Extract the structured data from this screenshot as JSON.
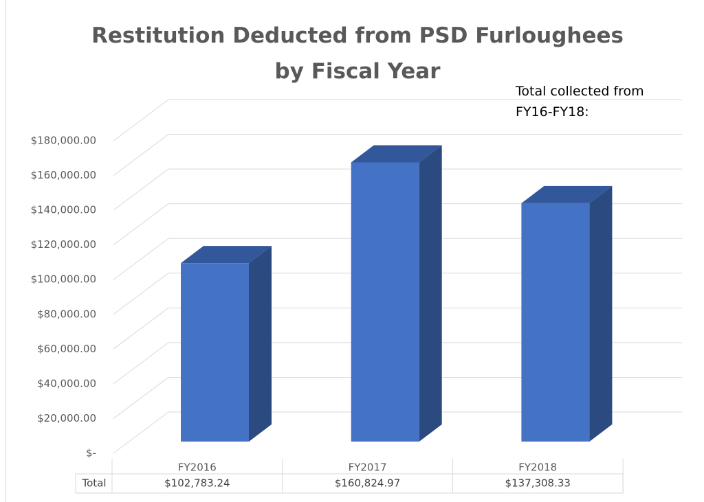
{
  "chart_data": {
    "type": "bar3d",
    "title": "Restitution Deducted from PSD Furloughees by Fiscal Year",
    "annotation": [
      "Total collected from",
      "FY16-FY18:"
    ],
    "categories": [
      "FY2016",
      "FY2017",
      "FY2018"
    ],
    "values": [
      102783.24,
      160824.97,
      137308.33
    ],
    "value_labels": [
      "$102,783.24",
      "$160,824.97",
      "$137,308.33"
    ],
    "table_row_label": "Total",
    "color": "#4472c4",
    "ylim": [
      0,
      180000
    ],
    "yticks": [
      {
        "value": 0,
        "label": "$-"
      },
      {
        "value": 20000,
        "label": "$20,000.00"
      },
      {
        "value": 40000,
        "label": "$40,000.00"
      },
      {
        "value": 60000,
        "label": "$60,000.00"
      },
      {
        "value": 80000,
        "label": "$80,000.00"
      },
      {
        "value": 100000,
        "label": "$100,000.00"
      },
      {
        "value": 120000,
        "label": "$120,000.00"
      },
      {
        "value": 140000,
        "label": "$140,000.00"
      },
      {
        "value": 160000,
        "label": "$160,000.00"
      },
      {
        "value": 180000,
        "label": "$180,000.00"
      }
    ],
    "grid": true
  }
}
